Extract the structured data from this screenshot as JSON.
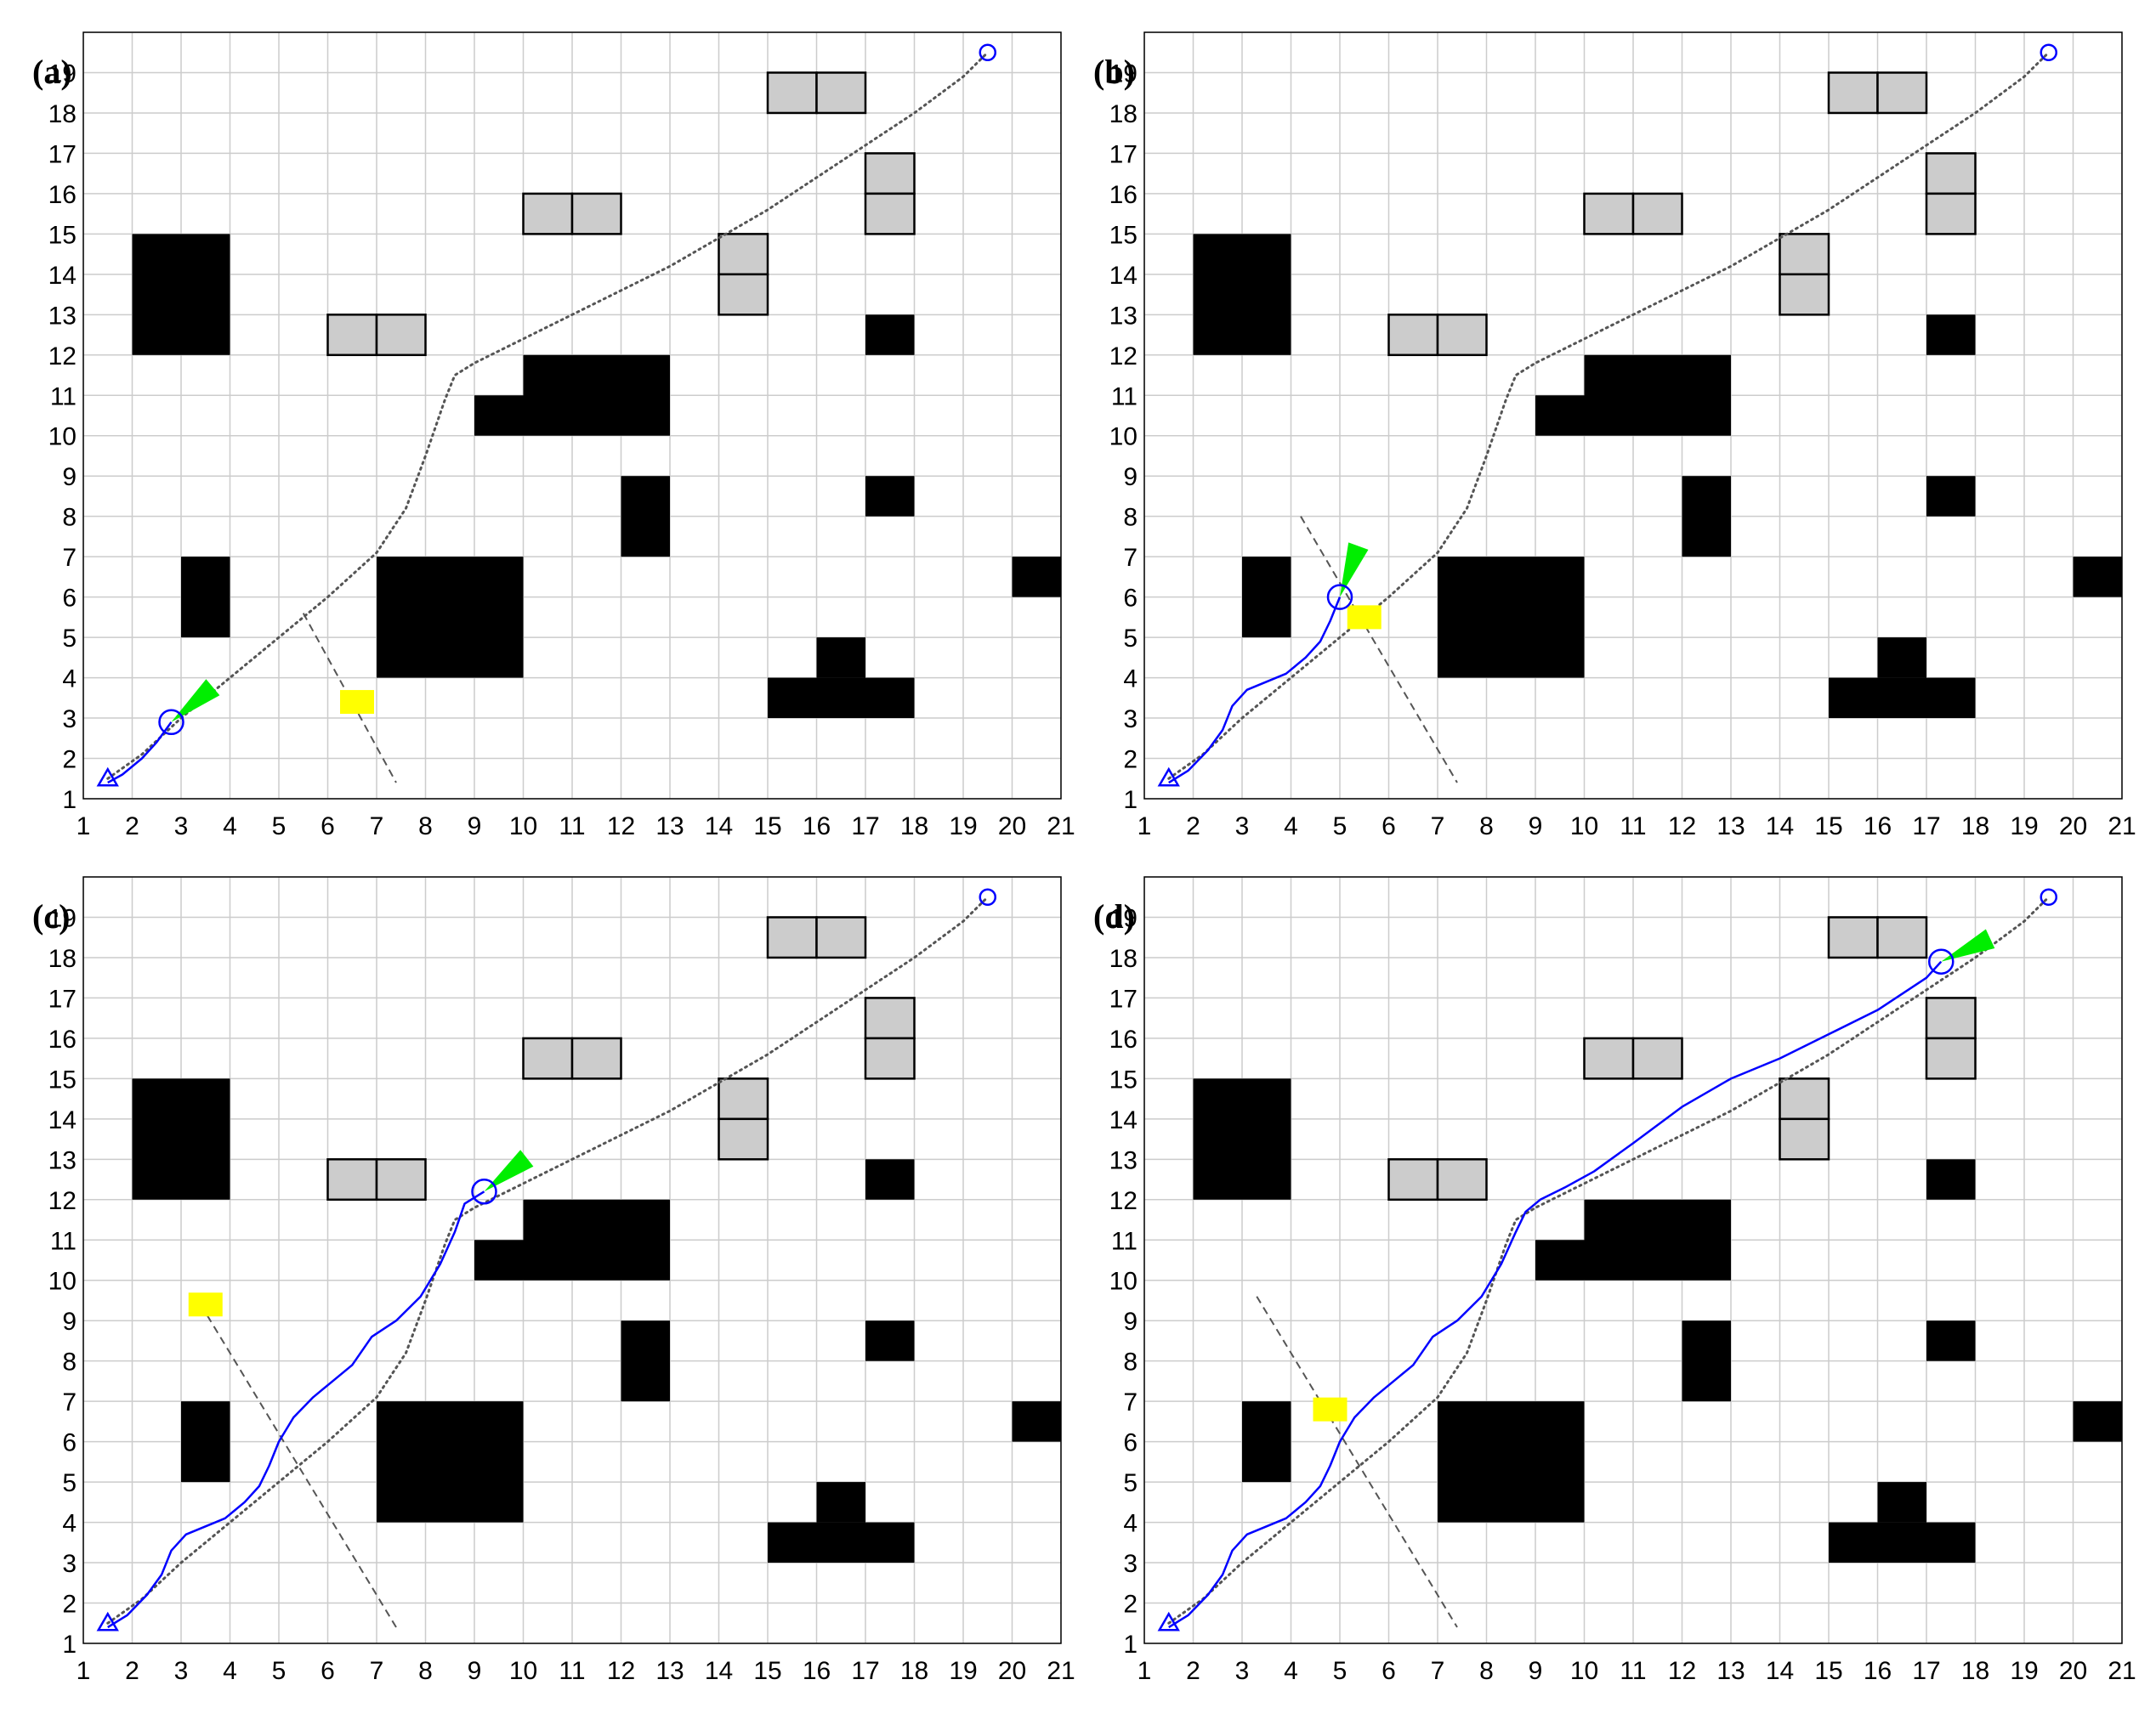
{
  "chart_data": {
    "type": "scatter",
    "grid": true,
    "xlim": [
      1,
      21
    ],
    "ylim": [
      1,
      20
    ],
    "xticks": [
      1,
      2,
      3,
      4,
      5,
      6,
      7,
      8,
      9,
      10,
      11,
      12,
      13,
      14,
      15,
      16,
      17,
      18,
      19,
      20,
      21
    ],
    "yticks": [
      1,
      2,
      3,
      4,
      5,
      6,
      7,
      8,
      9,
      10,
      11,
      12,
      13,
      14,
      15,
      16,
      17,
      18,
      19
    ],
    "colors": {
      "static_obstacle": "#000000",
      "movable_obstacle": "#cccccc",
      "obstacle_outline": "#000000",
      "moving_obstacle": "#ffff00",
      "robot_path": "#0000ff",
      "planned_path": "#555555",
      "moving_obstacle_track": "#555555",
      "sensor_cone": "#00ee00",
      "grid": "#cccccc"
    },
    "static_obstacles": [
      {
        "x": [
          2,
          4
        ],
        "y": [
          12,
          15
        ]
      },
      {
        "x": [
          9,
          10
        ],
        "y": [
          10,
          11
        ]
      },
      {
        "x": [
          10,
          13
        ],
        "y": [
          10,
          12
        ]
      },
      {
        "x": [
          12,
          13
        ],
        "y": [
          7,
          9
        ]
      },
      {
        "x": [
          17,
          18
        ],
        "y": [
          12,
          13
        ]
      },
      {
        "x": [
          17,
          18
        ],
        "y": [
          8,
          9
        ]
      },
      {
        "x": [
          3,
          4
        ],
        "y": [
          5,
          7
        ]
      },
      {
        "x": [
          7,
          10
        ],
        "y": [
          4,
          7
        ]
      },
      {
        "x": [
          20,
          22
        ],
        "y": [
          6,
          7
        ]
      },
      {
        "x": [
          15,
          18
        ],
        "y": [
          3,
          4
        ]
      },
      {
        "x": [
          16,
          17
        ],
        "y": [
          4,
          5
        ]
      }
    ],
    "movable_obstacles": [
      {
        "x": [
          15,
          16
        ],
        "y": [
          18,
          19
        ]
      },
      {
        "x": [
          16,
          17
        ],
        "y": [
          18,
          19
        ]
      },
      {
        "x": [
          10,
          11
        ],
        "y": [
          15,
          16
        ]
      },
      {
        "x": [
          11,
          12
        ],
        "y": [
          15,
          16
        ]
      },
      {
        "x": [
          17,
          18
        ],
        "y": [
          16,
          17
        ]
      },
      {
        "x": [
          17,
          18
        ],
        "y": [
          15,
          16
        ]
      },
      {
        "x": [
          14,
          15
        ],
        "y": [
          14,
          15
        ]
      },
      {
        "x": [
          14,
          15
        ],
        "y": [
          13,
          14
        ]
      },
      {
        "x": [
          6,
          7
        ],
        "y": [
          12,
          13
        ]
      },
      {
        "x": [
          7,
          8
        ],
        "y": [
          12,
          13
        ]
      }
    ],
    "start": {
      "x": 1.5,
      "y": 1.5
    },
    "goal": {
      "x": 19.5,
      "y": 19.5
    },
    "planned_path": {
      "x": [
        1.5,
        2.2,
        3.0,
        4.0,
        5.0,
        6.0,
        7.0,
        7.6,
        8.0,
        8.4,
        8.6,
        9.0,
        10.0,
        11.0,
        12.0,
        13.0,
        14.0,
        15.0,
        16.0,
        17.0,
        18.0,
        19.0,
        19.5
      ],
      "y": [
        1.5,
        2.1,
        3.0,
        4.0,
        5.0,
        6.0,
        7.1,
        8.2,
        9.5,
        10.9,
        11.5,
        11.8,
        12.4,
        13.0,
        13.6,
        14.2,
        14.9,
        15.6,
        16.4,
        17.2,
        18.0,
        18.9,
        19.5
      ]
    },
    "panels": [
      {
        "label": "(a)",
        "robot_path": {
          "x": [
            1.5,
            1.8,
            2.2,
            2.5,
            2.8
          ],
          "y": [
            1.4,
            1.6,
            2.0,
            2.4,
            2.9
          ]
        },
        "robot": {
          "x": 2.8,
          "y": 2.9,
          "heading_deg": 40
        },
        "moving_obstacle": {
          "x": 6.6,
          "y": 3.4
        },
        "obstacle_track": {
          "x": [
            5.5,
            7.4
          ],
          "y": [
            5.6,
            1.4
          ]
        }
      },
      {
        "label": "(b)",
        "robot_path": {
          "x": [
            1.5,
            1.9,
            2.3,
            2.6,
            2.8,
            3.1,
            3.5,
            3.9,
            4.3,
            4.6,
            4.8,
            5.0
          ],
          "y": [
            1.4,
            1.7,
            2.2,
            2.7,
            3.3,
            3.7,
            3.9,
            4.1,
            4.5,
            4.9,
            5.4,
            6.0
          ]
        },
        "robot": {
          "x": 5.0,
          "y": 6.0,
          "heading_deg": 70
        },
        "moving_obstacle": {
          "x": 5.5,
          "y": 5.5
        },
        "obstacle_track": {
          "x": [
            4.2,
            7.4
          ],
          "y": [
            8.0,
            1.4
          ]
        }
      },
      {
        "label": "(c)",
        "robot_path": {
          "x": [
            1.5,
            1.9,
            2.3,
            2.6,
            2.8,
            3.1,
            3.5,
            3.9,
            4.3,
            4.6,
            4.8,
            5.0,
            5.3,
            5.7,
            6.1,
            6.5,
            6.9,
            7.4,
            7.9,
            8.3,
            8.6,
            8.8,
            9.2
          ],
          "y": [
            1.4,
            1.7,
            2.2,
            2.7,
            3.3,
            3.7,
            3.9,
            4.1,
            4.5,
            4.9,
            5.4,
            6.0,
            6.6,
            7.1,
            7.5,
            7.9,
            8.6,
            9.0,
            9.6,
            10.4,
            11.2,
            11.9,
            12.2
          ]
        },
        "robot": {
          "x": 9.2,
          "y": 12.2,
          "heading_deg": 38
        },
        "moving_obstacle": {
          "x": 3.5,
          "y": 9.4
        },
        "obstacle_track": {
          "x": [
            3.4,
            7.4
          ],
          "y": [
            9.4,
            1.4
          ]
        }
      },
      {
        "label": "(d)",
        "robot_path": {
          "x": [
            1.5,
            1.9,
            2.3,
            2.6,
            2.8,
            3.1,
            3.5,
            3.9,
            4.3,
            4.6,
            4.8,
            5.0,
            5.3,
            5.7,
            6.1,
            6.5,
            6.9,
            7.4,
            7.9,
            8.3,
            8.6,
            8.8,
            9.1,
            9.6,
            10.2,
            11.0,
            12.0,
            13.0,
            14.0,
            15.0,
            16.0,
            17.0,
            17.3
          ],
          "y": [
            1.4,
            1.7,
            2.2,
            2.7,
            3.3,
            3.7,
            3.9,
            4.1,
            4.5,
            4.9,
            5.4,
            6.0,
            6.6,
            7.1,
            7.5,
            7.9,
            8.6,
            9.0,
            9.6,
            10.4,
            11.2,
            11.7,
            12.0,
            12.3,
            12.7,
            13.4,
            14.3,
            15.0,
            15.5,
            16.1,
            16.7,
            17.5,
            17.9
          ]
        },
        "robot": {
          "x": 17.3,
          "y": 17.9,
          "heading_deg": 25
        },
        "moving_obstacle": {
          "x": 4.8,
          "y": 6.8
        },
        "obstacle_track": {
          "x": [
            3.3,
            7.4
          ],
          "y": [
            9.6,
            1.4
          ]
        }
      }
    ]
  }
}
